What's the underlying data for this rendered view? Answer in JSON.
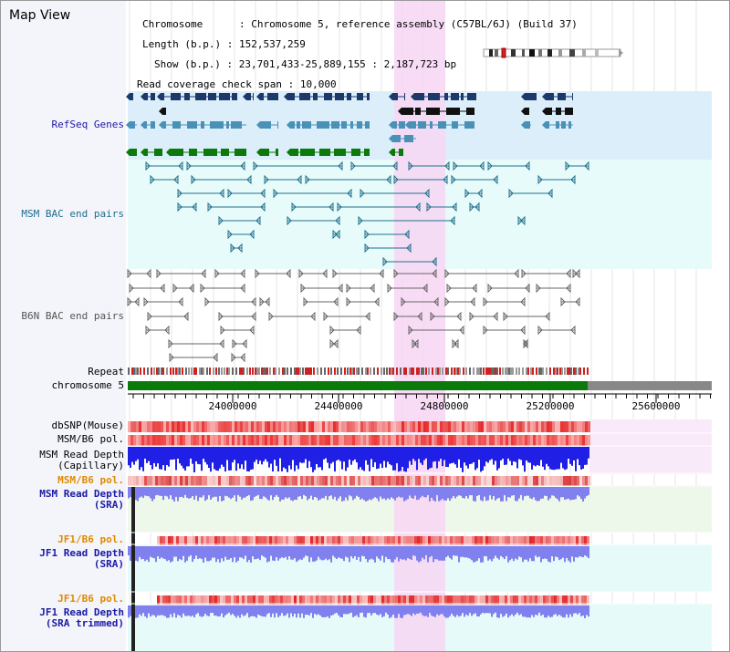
{
  "title": "Map View",
  "info": {
    "chromosome_key": "Chromosome",
    "chromosome_val": "Chromosome 5, reference assembly (C57BL/6J) (Build 37)",
    "length_key": "Length (b.p.)",
    "length_val": "152,537,259",
    "show_key": "Show (b.p.)",
    "show_val": "23,701,433-25,889,155 : 2,187,723 bp",
    "coverage_key": "Read coverage check span",
    "coverage_val": "10,000"
  },
  "labels": {
    "refseq": "RefSeq Genes",
    "msm_bac": "MSM BAC end pairs",
    "b6n_bac": "B6N BAC end pairs",
    "repeat": "Repeat",
    "chromosome": "chromosome 5",
    "dbsnp": "dbSNP(Mouse)",
    "msm_b6_pol_1": "MSM/B6 pol.",
    "msm_read_depth_cap_1": "MSM Read Depth",
    "msm_read_depth_cap_2": "(Capillary)",
    "msm_b6_pol_2": "MSM/B6 pol.",
    "msm_read_depth_sra_1": "MSM Read Depth",
    "msm_read_depth_sra_2": "(SRA)",
    "jf1_b6_pol_1": "JF1/B6 pol.",
    "jf1_read_depth_sra_1": "JF1 Read Depth",
    "jf1_read_depth_sra_2": "(SRA)",
    "jf1_b6_pol_2": "JF1/B6 pol.",
    "jf1_read_depth_trim_1": "JF1 Read Depth",
    "jf1_read_depth_trim_2": "(SRA trimmed)"
  },
  "axis_ticks": [
    "24000000",
    "24400000",
    "24800000",
    "25200000",
    "25600000"
  ],
  "colors": {
    "refseq_bg": "#dbeefa",
    "bac_bg": "#e7fbfb",
    "b6n_bg": "#f4f4fb",
    "highlight": "#f7d6f3",
    "gene_dark": "#1b3a6b",
    "gene_mid": "#4a91b8",
    "gene_green": "#0b7a0b",
    "bac_line": "#1f6f8b",
    "b6n_line": "#666666",
    "chrom_green": "#0a7a0a",
    "chrom_gray": "#888888",
    "pol_red": "#ee3333",
    "depth_blue": "#1f1fe6",
    "depth_light": "#8080ee"
  }
}
